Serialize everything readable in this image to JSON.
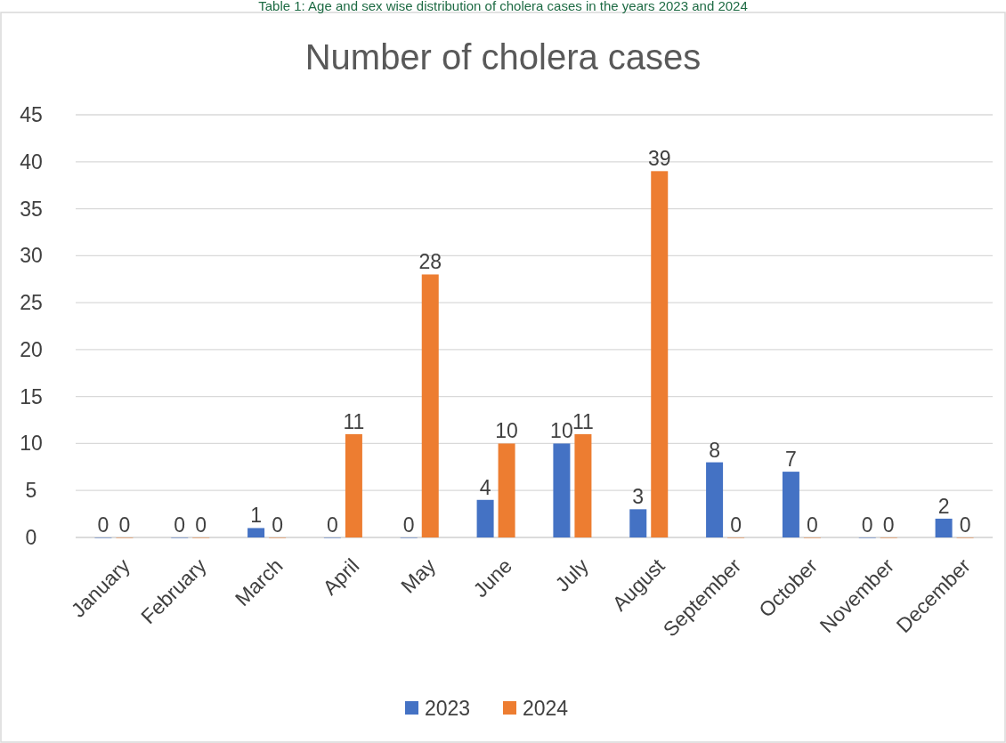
{
  "chart_data": {
    "type": "bar",
    "title": "Number of cholera cases",
    "annotations": [
      "Table 1: Age and sex wise distribution of cholera cases in the years 2023 and 2024"
    ],
    "categories": [
      "January",
      "February",
      "March",
      "April",
      "May",
      "June",
      "July",
      "August",
      "September",
      "October",
      "November",
      "December"
    ],
    "series": [
      {
        "name": "2023",
        "color": "#4472c4",
        "values": [
          0,
          0,
          1,
          0,
          0,
          4,
          10,
          3,
          8,
          7,
          0,
          2
        ]
      },
      {
        "name": "2024",
        "color": "#ed7d31",
        "values": [
          0,
          0,
          0,
          11,
          28,
          10,
          11,
          39,
          0,
          0,
          0,
          0
        ]
      }
    ],
    "ylim": [
      0,
      45
    ],
    "yticks": [
      0,
      5,
      10,
      15,
      20,
      25,
      30,
      35,
      40,
      45
    ],
    "grid": "y",
    "legend": "bottom",
    "data_labels": true
  }
}
